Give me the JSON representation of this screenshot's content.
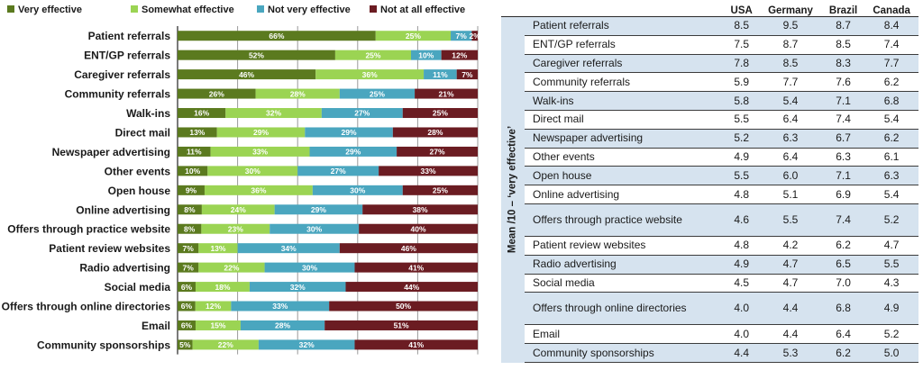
{
  "chart_data": {
    "type": "bar",
    "orientation": "horizontal",
    "stacked": true,
    "percent": true,
    "legend": [
      "Very effective",
      "Somewhat effective",
      "Not very effective",
      "Not at all effective"
    ],
    "colors": [
      "#5b7a1f",
      "#9bd453",
      "#4aa6bf",
      "#6b1c22"
    ],
    "categories": [
      "Patient referrals",
      "ENT/GP referrals",
      "Caregiver referrals",
      "Community referrals",
      "Walk-ins",
      "Direct mail",
      "Newspaper advertising",
      "Other events",
      "Open house",
      "Online advertising",
      "Offers through practice website",
      "Patient review websites",
      "Radio advertising",
      "Social media",
      "Offers through online directories",
      "Email",
      "Community sponsorships"
    ],
    "series": [
      {
        "name": "Very effective",
        "values": [
          66,
          52,
          46,
          26,
          16,
          13,
          11,
          10,
          9,
          8,
          8,
          7,
          7,
          6,
          6,
          6,
          5
        ],
        "labels": [
          "66%",
          "52%",
          "46%",
          "26%",
          "16%",
          "13%",
          "11%",
          "10%",
          "9%",
          "8%",
          "8%",
          "7%",
          "7%",
          "6%",
          "6%",
          "6%",
          "5%"
        ]
      },
      {
        "name": "Somewhat effective",
        "values": [
          25,
          25,
          36,
          28,
          32,
          29,
          33,
          30,
          36,
          24,
          23,
          13,
          22,
          18,
          12,
          15,
          22
        ],
        "labels": [
          "25%",
          "25%",
          "36%",
          "28%",
          "32%",
          "29%",
          "33%",
          "30%",
          "36%",
          "24%",
          "23%",
          "13%",
          "22%",
          "18%",
          "12%",
          "15%",
          "22%"
        ]
      },
      {
        "name": "Not very effective",
        "values": [
          7,
          10,
          11,
          25,
          27,
          29,
          29,
          27,
          30,
          29,
          30,
          34,
          30,
          32,
          33,
          28,
          32
        ],
        "labels": [
          "7%",
          "10%",
          "11%",
          "25%",
          "27%",
          "29%",
          "29%",
          "27%",
          "30%",
          "29%",
          "30%",
          "34%",
          "30%",
          "32%",
          "33%",
          "28%",
          "32%"
        ]
      },
      {
        "name": "Not at all effective",
        "values": [
          2,
          12,
          7,
          21,
          25,
          28,
          27,
          33,
          25,
          38,
          40,
          46,
          41,
          44,
          50,
          51,
          41
        ],
        "labels": [
          "2%",
          "12%",
          "7%",
          "21%",
          "25%",
          "28%",
          "27%",
          "33%",
          "25%",
          "38%",
          "40%",
          "46%",
          "41%",
          "44%",
          "50%",
          "51%",
          "41%"
        ]
      }
    ],
    "xlim": [
      0,
      100
    ]
  },
  "table": {
    "row_title": "Mean /10 – ‘very effective’",
    "columns": [
      "USA",
      "Germany",
      "Brazil",
      "Canada"
    ],
    "rows": [
      {
        "label": "Patient referrals",
        "values": [
          "8.5",
          "9.5",
          "8.7",
          "8.4"
        ]
      },
      {
        "label": "ENT/GP referrals",
        "values": [
          "7.5",
          "8.7",
          "8.5",
          "7.4"
        ]
      },
      {
        "label": "Caregiver referrals",
        "values": [
          "7.8",
          "8.5",
          "8.3",
          "7.7"
        ]
      },
      {
        "label": "Community referrals",
        "values": [
          "5.9",
          "7.7",
          "7.6",
          "6.2"
        ]
      },
      {
        "label": "Walk-ins",
        "values": [
          "5.8",
          "5.4",
          "7.1",
          "6.8"
        ]
      },
      {
        "label": "Direct mail",
        "values": [
          "5.5",
          "6.4",
          "7.4",
          "5.4"
        ]
      },
      {
        "label": "Newspaper advertising",
        "values": [
          "5.2",
          "6.3",
          "6.7",
          "6.2"
        ]
      },
      {
        "label": "Other events",
        "values": [
          "4.9",
          "6.4",
          "6.3",
          "6.1"
        ]
      },
      {
        "label": "Open house",
        "values": [
          "5.5",
          "6.0",
          "7.1",
          "6.3"
        ]
      },
      {
        "label": "Online advertising",
        "values": [
          "4.8",
          "5.1",
          "6.9",
          "5.4"
        ]
      },
      {
        "label": "Offers through practice website",
        "values": [
          "4.6",
          "5.5",
          "7.4",
          "5.2"
        ]
      },
      {
        "label": "Patient review websites",
        "values": [
          "4.8",
          "4.2",
          "6.2",
          "4.7"
        ]
      },
      {
        "label": "Radio advertising",
        "values": [
          "4.9",
          "4.7",
          "6.5",
          "5.5"
        ]
      },
      {
        "label": "Social media",
        "values": [
          "4.5",
          "4.7",
          "7.0",
          "4.3"
        ]
      },
      {
        "label": "Offers through online directories",
        "values": [
          "4.0",
          "4.4",
          "6.8",
          "4.9"
        ]
      },
      {
        "label": "Email",
        "values": [
          "4.0",
          "4.4",
          "6.4",
          "5.2"
        ]
      },
      {
        "label": "Community sponsorships",
        "values": [
          "4.4",
          "5.3",
          "6.2",
          "5.0"
        ]
      }
    ]
  }
}
